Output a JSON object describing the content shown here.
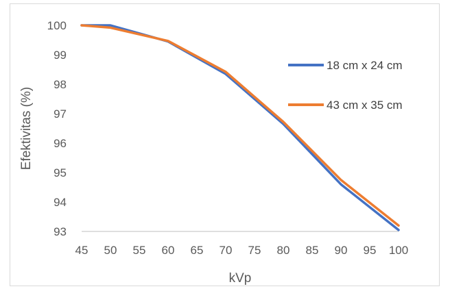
{
  "chart_data": {
    "type": "line",
    "title": "",
    "xlabel": "kVp",
    "ylabel": "Efektivitas (%)",
    "x": [
      45,
      50,
      60,
      70,
      80,
      90,
      100
    ],
    "x_ticks": [
      45,
      50,
      55,
      60,
      65,
      70,
      75,
      80,
      85,
      90,
      95,
      100
    ],
    "xlim": [
      45,
      100
    ],
    "ylim": [
      93,
      100
    ],
    "y_ticks": [
      93,
      94,
      95,
      96,
      97,
      98,
      99,
      100
    ],
    "grid": false,
    "legend_position": "right",
    "series": [
      {
        "name": "18 cm x 24 cm",
        "color": "#4472c4",
        "values": [
          100,
          100,
          99.45,
          98.35,
          96.65,
          94.6,
          93.05
        ]
      },
      {
        "name": "43 cm x 35 cm",
        "color": "#ed7d31",
        "values": [
          100,
          99.92,
          99.47,
          98.42,
          96.72,
          94.75,
          93.2
        ]
      }
    ]
  }
}
